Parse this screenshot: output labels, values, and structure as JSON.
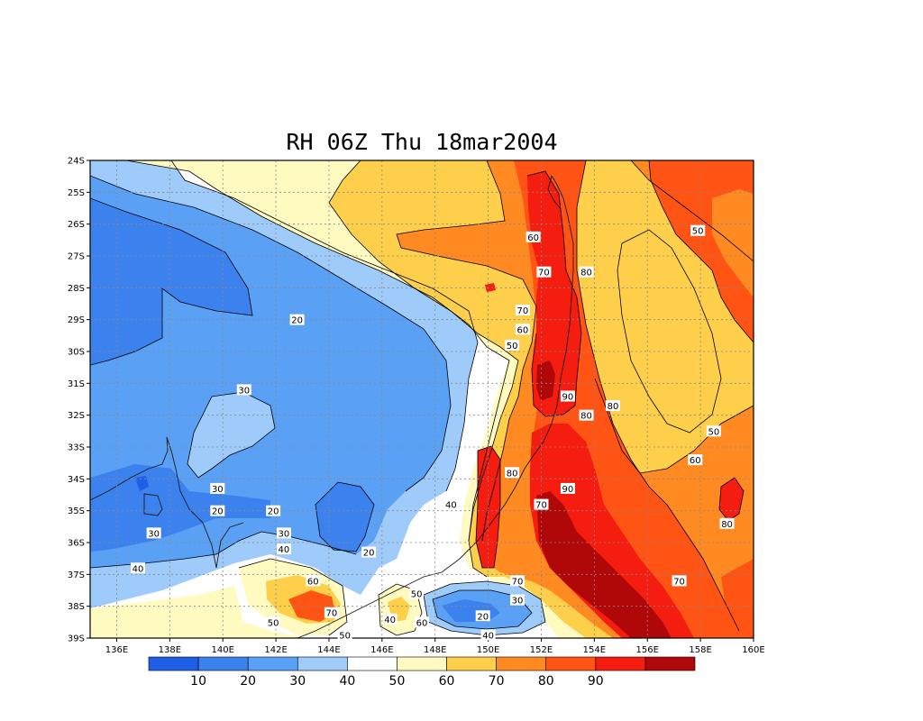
{
  "chart_data": {
    "type": "heatmap",
    "title": "RH 06Z Thu 18mar2004",
    "x_ticks": [
      "136E",
      "138E",
      "140E",
      "142E",
      "144E",
      "146E",
      "148E",
      "150E",
      "152E",
      "154E",
      "156E",
      "158E",
      "160E"
    ],
    "y_ticks": [
      "24S",
      "25S",
      "26S",
      "27S",
      "28S",
      "29S",
      "30S",
      "31S",
      "32S",
      "33S",
      "34S",
      "35S",
      "36S",
      "37S",
      "38S",
      "39S"
    ],
    "xlim": [
      135,
      160
    ],
    "ylim": [
      -39,
      -24
    ],
    "grid": true,
    "colorbar": {
      "colors": [
        "#1f5fe6",
        "#3c82ee",
        "#5aa0f5",
        "#9ecbfa",
        "#ffffff",
        "#fffac0",
        "#fecf4a",
        "#ff8a22",
        "#ff5414",
        "#f51c10",
        "#b00808"
      ],
      "labels": [
        "10",
        "20",
        "30",
        "40",
        "50",
        "60",
        "70",
        "80",
        "90"
      ]
    },
    "contour_labels": [
      {
        "text": "60",
        "lon": 151.7,
        "lat": -26.4
      },
      {
        "text": "70",
        "lon": 152.1,
        "lat": -27.5
      },
      {
        "text": "80",
        "lon": 153.7,
        "lat": -27.5
      },
      {
        "text": "50",
        "lon": 157.9,
        "lat": -26.2
      },
      {
        "text": "20",
        "lon": 142.8,
        "lat": -29.0
      },
      {
        "text": "70",
        "lon": 151.3,
        "lat": -28.7
      },
      {
        "text": "60",
        "lon": 151.3,
        "lat": -29.3
      },
      {
        "text": "50",
        "lon": 150.9,
        "lat": -29.8
      },
      {
        "text": "30",
        "lon": 140.8,
        "lat": -31.2
      },
      {
        "text": "90",
        "lon": 153.0,
        "lat": -31.4
      },
      {
        "text": "80",
        "lon": 153.7,
        "lat": -32.0
      },
      {
        "text": "80",
        "lon": 154.7,
        "lat": -31.7
      },
      {
        "text": "50",
        "lon": 158.5,
        "lat": -32.5
      },
      {
        "text": "60",
        "lon": 157.8,
        "lat": -33.4
      },
      {
        "text": "80",
        "lon": 150.9,
        "lat": -33.8
      },
      {
        "text": "30",
        "lon": 139.8,
        "lat": -34.3
      },
      {
        "text": "90",
        "lon": 153.0,
        "lat": -34.3
      },
      {
        "text": "70",
        "lon": 152.0,
        "lat": -34.8
      },
      {
        "text": "20",
        "lon": 139.8,
        "lat": -35.0
      },
      {
        "text": "20",
        "lon": 141.9,
        "lat": -35.0
      },
      {
        "text": "40",
        "lon": 148.6,
        "lat": -34.8
      },
      {
        "text": "80",
        "lon": 159.0,
        "lat": -35.4
      },
      {
        "text": "30",
        "lon": 137.4,
        "lat": -35.7
      },
      {
        "text": "30",
        "lon": 142.3,
        "lat": -35.7
      },
      {
        "text": "40",
        "lon": 142.3,
        "lat": -36.2
      },
      {
        "text": "20",
        "lon": 145.5,
        "lat": -36.3
      },
      {
        "text": "40",
        "lon": 136.8,
        "lat": -36.8
      },
      {
        "text": "60",
        "lon": 143.4,
        "lat": -37.2
      },
      {
        "text": "70",
        "lon": 151.1,
        "lat": -37.2
      },
      {
        "text": "70",
        "lon": 157.2,
        "lat": -37.2
      },
      {
        "text": "50",
        "lon": 147.3,
        "lat": -37.6
      },
      {
        "text": "30",
        "lon": 151.1,
        "lat": -37.8
      },
      {
        "text": "70",
        "lon": 144.1,
        "lat": -38.2
      },
      {
        "text": "20",
        "lon": 149.8,
        "lat": -38.3
      },
      {
        "text": "40",
        "lon": 146.3,
        "lat": -38.4
      },
      {
        "text": "60",
        "lon": 147.5,
        "lat": -38.5
      },
      {
        "text": "50",
        "lon": 141.9,
        "lat": -38.5
      },
      {
        "text": "50",
        "lon": 144.6,
        "lat": -38.9
      },
      {
        "text": "40",
        "lon": 150.0,
        "lat": -38.9
      }
    ]
  }
}
